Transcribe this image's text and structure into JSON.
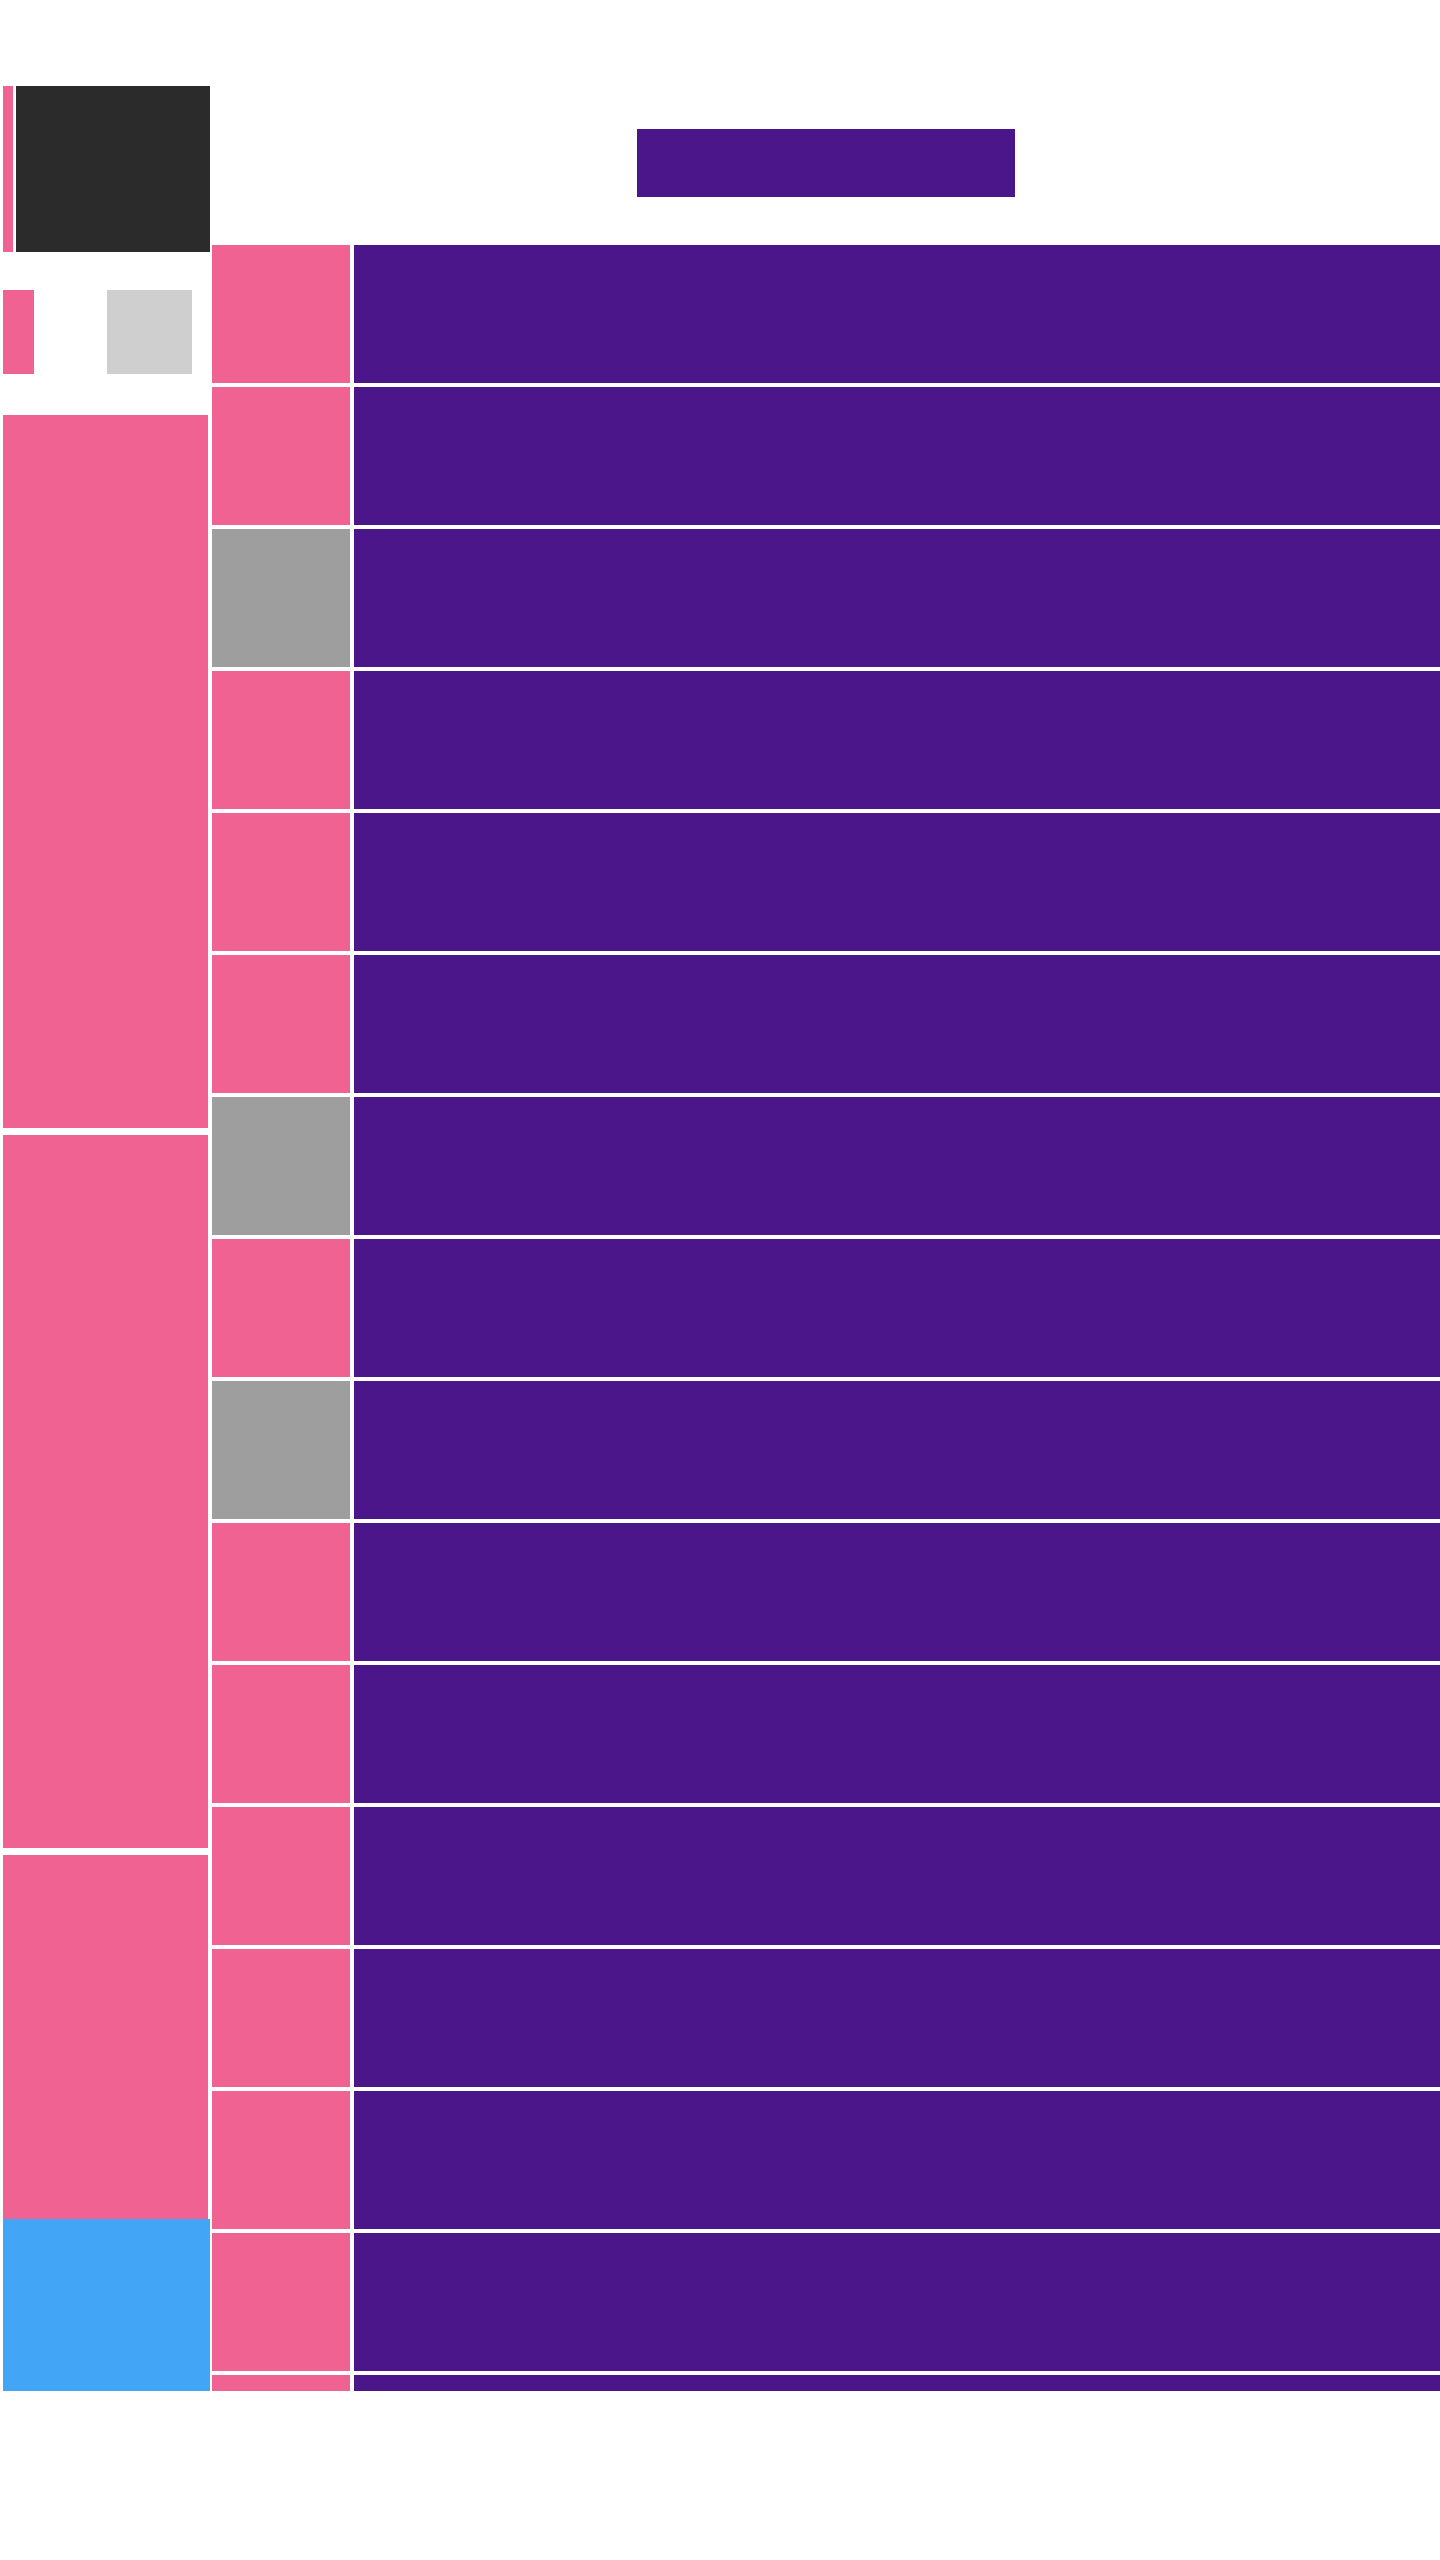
{
  "colors": {
    "pink": "#f06292",
    "purple": "#4a168a",
    "gray": "#9e9e9e",
    "light_gray": "#cfcfcf",
    "dark": "#2b2b2b",
    "blue": "#42a5f5"
  },
  "list": {
    "rows": [
      {
        "thumb": "pink"
      },
      {
        "thumb": "pink"
      },
      {
        "thumb": "gray"
      },
      {
        "thumb": "pink"
      },
      {
        "thumb": "pink"
      },
      {
        "thumb": "pink"
      },
      {
        "thumb": "gray"
      },
      {
        "thumb": "pink"
      },
      {
        "thumb": "gray"
      },
      {
        "thumb": "pink"
      },
      {
        "thumb": "pink"
      },
      {
        "thumb": "pink"
      },
      {
        "thumb": "pink"
      },
      {
        "thumb": "pink"
      },
      {
        "thumb": "pink"
      },
      {
        "thumb": "pink"
      }
    ]
  }
}
